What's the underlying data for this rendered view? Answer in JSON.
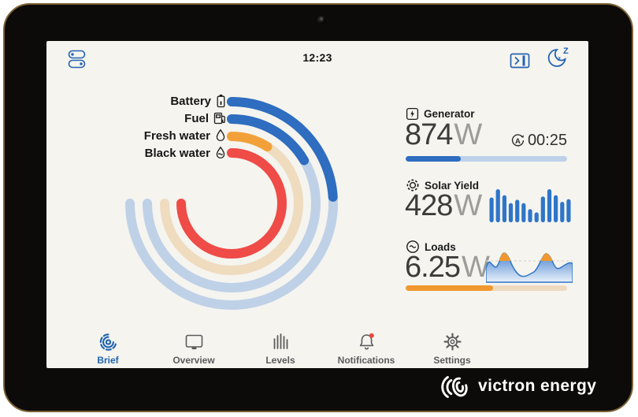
{
  "status_bar": {
    "time": "12:23"
  },
  "chart_data": [
    {
      "type": "radial-bar",
      "name": "tank-gauges",
      "sweep_deg": 270,
      "start": "top-clockwise",
      "series": [
        {
          "name": "Battery",
          "percent": 32,
          "color": "#2E6DBF",
          "track": "#BFD1E7",
          "icon": "battery-icon"
        },
        {
          "name": "Fuel",
          "percent": 22,
          "color": "#2E6DBF",
          "track": "#BFD1E7",
          "icon": "fuel-pump-icon"
        },
        {
          "name": "Fresh water",
          "percent": 12,
          "color": "#F2A13A",
          "track": "#EFDBBE",
          "icon": "water-drop-icon"
        },
        {
          "name": "Black water",
          "percent": 100,
          "color": "#EF4B47",
          "track": "#F8CDCB",
          "icon": "black-water-drop-icon"
        }
      ]
    },
    {
      "type": "bar",
      "name": "solar-history",
      "values": [
        0.75,
        1.0,
        0.82,
        0.58,
        0.68,
        0.58,
        0.4,
        0.3,
        0.78,
        1.0,
        0.82,
        0.62,
        0.7
      ],
      "color": "#2E75C8"
    },
    {
      "type": "area",
      "name": "loads-history",
      "points": [
        [
          0,
          26
        ],
        [
          3,
          16
        ],
        [
          8,
          22
        ],
        [
          14,
          27
        ],
        [
          21,
          5
        ],
        [
          28,
          10
        ],
        [
          34,
          25
        ],
        [
          42,
          36
        ],
        [
          50,
          37
        ],
        [
          57,
          33
        ],
        [
          63,
          30
        ],
        [
          70,
          16
        ],
        [
          76,
          6
        ],
        [
          82,
          12
        ],
        [
          88,
          26
        ],
        [
          93,
          27
        ],
        [
          100,
          22
        ],
        [
          106,
          19
        ],
        [
          110,
          20
        ]
      ],
      "baseline": 44,
      "threshold": 17,
      "line_color": "#2E75C8",
      "fill_top": "#4A84CF",
      "fill_bottom": "#E9F1FA",
      "above_color": "#F0982F",
      "threshold_line_color": "#D8D5CE"
    }
  ],
  "right_panel": {
    "generator": {
      "label": "Generator",
      "value": "874",
      "unit": "W",
      "timer": "00:25",
      "progress_pct": 34
    },
    "solar": {
      "label": "Solar Yield",
      "value": "428",
      "unit": "W"
    },
    "loads": {
      "label": "Loads",
      "value": "6.25",
      "unit": "W",
      "progress_pct": 54
    }
  },
  "nav": {
    "items": [
      {
        "label": "Brief",
        "active": true,
        "icon": "brief-icon"
      },
      {
        "label": "Overview",
        "active": false,
        "icon": "overview-icon"
      },
      {
        "label": "Levels",
        "active": false,
        "icon": "levels-icon"
      },
      {
        "label": "Notifications",
        "active": false,
        "icon": "notifications-icon",
        "has_badge": true,
        "badge_color": "#E8483F"
      },
      {
        "label": "Settings",
        "active": false,
        "icon": "settings-icon"
      }
    ]
  },
  "branding": {
    "logo_text": "victron energy"
  },
  "colors": {
    "screen_bg": "#F5F4EF",
    "accent_blue": "#2E6DBF",
    "accent_orange": "#F0982F",
    "accent_red": "#EF4B47",
    "nav_active": "#1E63AE"
  }
}
